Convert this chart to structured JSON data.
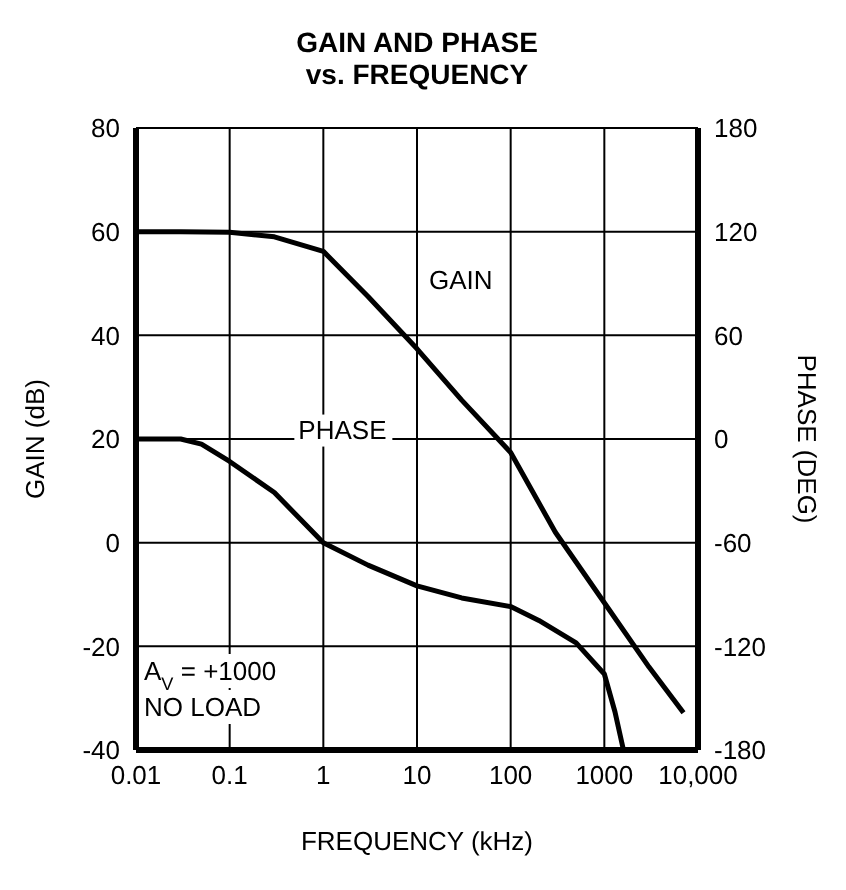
{
  "chart_data": {
    "type": "line",
    "title": "GAIN AND PHASE\nvs. FREQUENCY",
    "xlabel": "FREQUENCY (kHz)",
    "ylabel": "GAIN (dB)",
    "y2label": "PHASE (DEG)",
    "x": [
      0.01,
      0.03,
      0.1,
      0.3,
      1,
      3,
      10,
      30,
      100,
      300,
      1000,
      3000,
      7000
    ],
    "series": [
      {
        "name": "GAIN",
        "color": "#000000",
        "values": [
          60,
          60,
          59.9,
          59,
          56.2,
          47.5,
          37.4,
          27.5,
          17.4,
          2,
          -11.6,
          -24,
          -32.8
        ]
      },
      {
        "name": "PHASE",
        "color": "#000000",
        "axis": "y2",
        "x": [
          0.01,
          0.03,
          0.05,
          0.1,
          0.3,
          1,
          3,
          10,
          30,
          100,
          200,
          500,
          1000,
          1300,
          1600
        ],
        "values": [
          0,
          0,
          -3,
          -13,
          -31,
          -60,
          -73,
          -85,
          -92,
          -97,
          -105,
          -118,
          -136,
          -158,
          -180
        ]
      }
    ],
    "log": "x",
    "xlim": [
      0.01,
      10000
    ],
    "xticks": [
      0.01,
      0.1,
      1,
      10,
      100,
      1000,
      {
        "value": 10000,
        "label": "10,000"
      }
    ],
    "ylim": [
      -40,
      80
    ],
    "yticks": [
      -40,
      -20,
      0,
      20,
      40,
      60,
      80
    ],
    "y2lim": [
      -180,
      180
    ],
    "y2ticks": [
      -180,
      -120,
      -60,
      0,
      60,
      120,
      180
    ],
    "grid": true,
    "legend": false,
    "marker": "none",
    "line_style": "solid",
    "annotations": [
      "A$_{V}$ = +1000",
      "NO LOAD"
    ]
  }
}
